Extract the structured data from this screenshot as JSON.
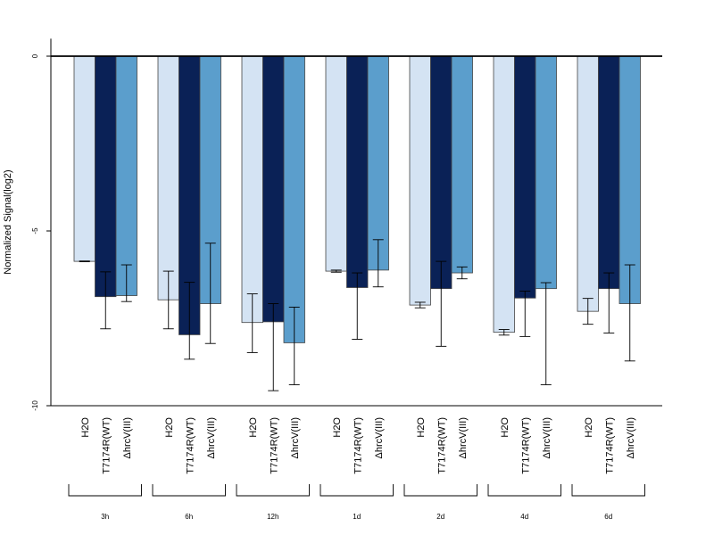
{
  "chart_data": {
    "type": "bar",
    "title": "",
    "xlabel": "",
    "ylabel": "Normalized Signal(log2)",
    "ylim": [
      -10,
      0.5
    ],
    "yticks": [
      0,
      -5,
      -10
    ],
    "grid": false,
    "legend": "none",
    "groups": [
      "3h",
      "6h",
      "12h",
      "1d",
      "2d",
      "4d",
      "6d"
    ],
    "series": [
      {
        "name": "H2O",
        "color": "#d4e3f3",
        "values": [
          -5.87,
          -6.97,
          -7.62,
          -6.15,
          -7.12,
          -7.9,
          -7.3
        ],
        "err_low": [
          -5.88,
          -7.8,
          -8.48,
          -6.18,
          -7.2,
          -7.98,
          -7.67
        ],
        "err_high": [
          -5.86,
          -6.15,
          -6.8,
          -6.12,
          -7.04,
          -7.82,
          -6.93
        ]
      },
      {
        "name": "T7174R(WT)",
        "color": "#0a2156",
        "values": [
          -6.88,
          -7.97,
          -7.6,
          -6.62,
          -6.65,
          -6.92,
          -6.65
        ],
        "err_low": [
          -7.8,
          -8.67,
          -9.57,
          -8.1,
          -8.3,
          -8.02,
          -7.92
        ],
        "err_high": [
          -6.17,
          -6.47,
          -7.08,
          -6.2,
          -5.87,
          -6.72,
          -6.2
        ]
      },
      {
        "name": "ΔhrcV(III)",
        "color": "#5b9ecc",
        "values": [
          -6.85,
          -7.08,
          -8.2,
          -6.12,
          -6.2,
          -6.65,
          -7.08
        ],
        "err_low": [
          -7.02,
          -8.22,
          -9.4,
          -6.6,
          -6.37,
          -9.4,
          -8.72
        ],
        "err_high": [
          -5.97,
          -5.35,
          -7.18,
          -5.25,
          -6.03,
          -6.48,
          -5.97
        ]
      }
    ],
    "bar_labels": [
      "H2O",
      "T7174R(WT)",
      "ΔhrcV(III)"
    ],
    "y_tick_labels": [
      "0",
      "-5",
      "-10"
    ]
  }
}
